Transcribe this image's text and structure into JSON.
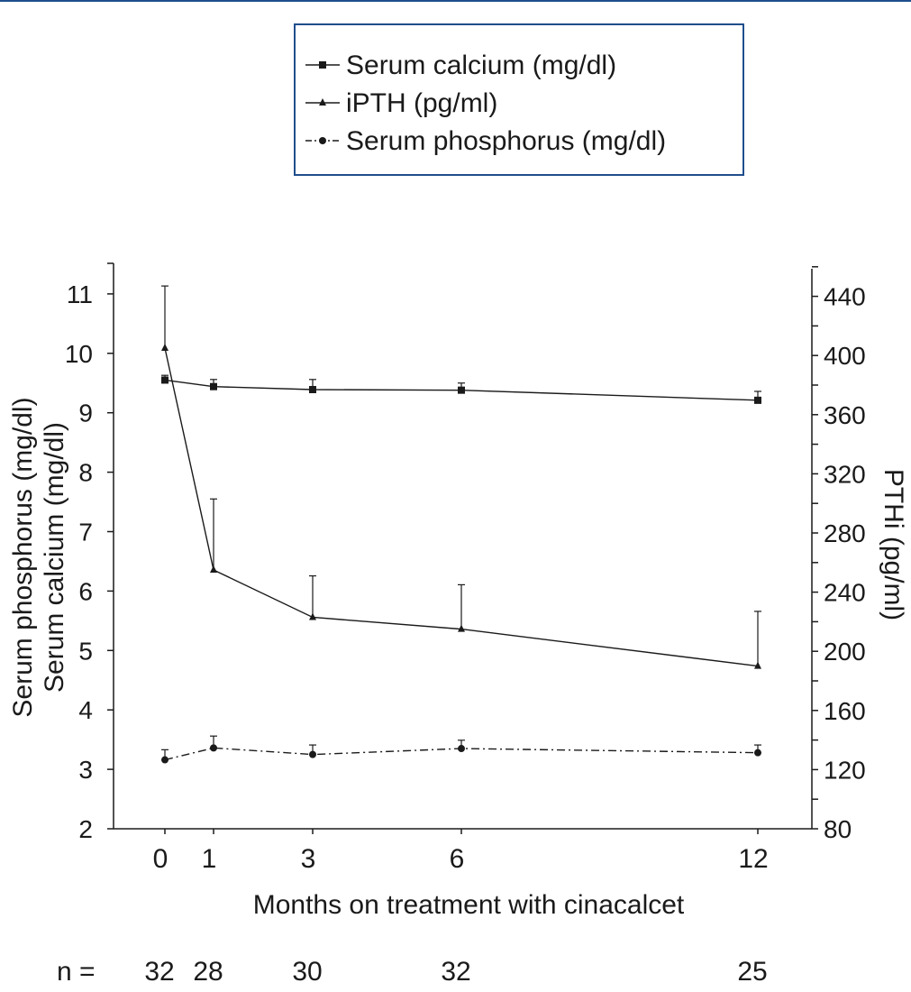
{
  "colors": {
    "frame_border": "#1f4e8c",
    "ink": "#1a1a1a",
    "top_rule": "#1f4e8c"
  },
  "legend": {
    "placement": "top",
    "items": [
      {
        "label": "Serum calcium (mg/dl)",
        "marker": "square",
        "line": "solid"
      },
      {
        "label": "iPTH (pg/ml)",
        "marker": "triangle",
        "line": "solid"
      },
      {
        "label": "Serum phosphorus (mg/dl)",
        "marker": "circle",
        "line": "dash-dot"
      }
    ]
  },
  "chart_data": {
    "type": "line",
    "title": "",
    "x": [
      0,
      1,
      3,
      6,
      12
    ],
    "xlabel": "Months on treatment with cinacalcet",
    "y_left_label_lines": [
      "Serum phosphorus (mg/dl)",
      "Serum calcium (mg/dl)"
    ],
    "y_right_label": "PTHi (pg/ml)",
    "y_left": {
      "min": 2,
      "max": 11.5,
      "ticks": [
        2,
        3,
        4,
        5,
        6,
        7,
        8,
        9,
        10,
        11
      ]
    },
    "y_right": {
      "min": 80,
      "max": 460,
      "ticks": [
        80,
        120,
        160,
        200,
        240,
        280,
        320,
        360,
        400,
        440
      ]
    },
    "grid": false,
    "series": [
      {
        "name": "Serum calcium (mg/dl)",
        "axis": "left",
        "marker": "square",
        "line": "solid",
        "values": [
          9.55,
          9.44,
          9.39,
          9.38,
          9.21
        ],
        "error_upper": [
          9.63,
          9.56,
          9.56,
          9.5,
          9.36
        ]
      },
      {
        "name": "iPTH (pg/ml)",
        "axis": "right",
        "marker": "triangle",
        "line": "solid",
        "values": [
          405,
          255,
          223,
          215,
          190
        ],
        "error_upper": [
          447,
          303,
          251,
          245,
          227
        ]
      },
      {
        "name": "Serum phosphorus (mg/dl)",
        "axis": "left",
        "marker": "circle",
        "line": "dash-dot",
        "values": [
          3.16,
          3.36,
          3.25,
          3.35,
          3.28
        ],
        "error_upper": [
          3.33,
          3.56,
          3.41,
          3.49,
          3.41
        ]
      }
    ],
    "n_row": {
      "label": "n =",
      "values": [
        "32",
        "28",
        "30",
        "32",
        "25"
      ]
    }
  }
}
